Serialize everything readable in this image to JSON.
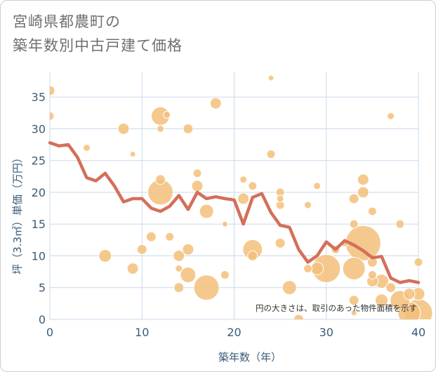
{
  "title": [
    "宮崎県都農町の",
    "築年数別中古戸建て価格"
  ],
  "chart_data": {
    "type": "scatter",
    "xlabel": "築年数（年）",
    "ylabel": "坪（3.3㎡）単価（万円）",
    "xlim": [
      0,
      40
    ],
    "ylim": [
      0,
      39
    ],
    "xticks": [
      0,
      10,
      20,
      30,
      40
    ],
    "yticks": [
      0,
      5,
      10,
      15,
      20,
      25,
      30,
      35
    ],
    "grid": true,
    "note": "円の大きさは、取引のあった物件面積を示す",
    "colors": {
      "bubble": "#f3c07a",
      "bubble_edge": "#ffffff",
      "line": "#d46f5a",
      "axis_text": "#3b5c78",
      "grid": "#c9d9ea"
    },
    "bubbles": [
      {
        "x": 0,
        "y": 36,
        "r": 7
      },
      {
        "x": 0,
        "y": 32,
        "r": 6
      },
      {
        "x": 4,
        "y": 27,
        "r": 5
      },
      {
        "x": 6,
        "y": 10,
        "r": 9
      },
      {
        "x": 8,
        "y": 30,
        "r": 8
      },
      {
        "x": 9,
        "y": 26,
        "r": 4
      },
      {
        "x": 9,
        "y": 8,
        "r": 8
      },
      {
        "x": 10,
        "y": 11,
        "r": 7
      },
      {
        "x": 11,
        "y": 13,
        "r": 7
      },
      {
        "x": 12,
        "y": 32,
        "r": 13
      },
      {
        "x": 12,
        "y": 30,
        "r": 5
      },
      {
        "x": 12,
        "y": 22,
        "r": 7
      },
      {
        "x": 12,
        "y": 20,
        "r": 18
      },
      {
        "x": 12.7,
        "y": 32.2,
        "r": 5
      },
      {
        "x": 13,
        "y": 13,
        "r": 6
      },
      {
        "x": 14,
        "y": 10,
        "r": 8
      },
      {
        "x": 14,
        "y": 5,
        "r": 7
      },
      {
        "x": 14,
        "y": 8,
        "r": 5
      },
      {
        "x": 15,
        "y": 30,
        "r": 7
      },
      {
        "x": 15,
        "y": 11,
        "r": 8
      },
      {
        "x": 15,
        "y": 7,
        "r": 11
      },
      {
        "x": 16,
        "y": 23,
        "r": 6
      },
      {
        "x": 16,
        "y": 21,
        "r": 8
      },
      {
        "x": 17,
        "y": 17,
        "r": 10
      },
      {
        "x": 17,
        "y": 5,
        "r": 18
      },
      {
        "x": 18,
        "y": 34,
        "r": 8
      },
      {
        "x": 19,
        "y": 15,
        "r": 4
      },
      {
        "x": 19,
        "y": 7,
        "r": 6
      },
      {
        "x": 21,
        "y": 22,
        "r": 5
      },
      {
        "x": 21,
        "y": 19,
        "r": 8
      },
      {
        "x": 22,
        "y": 21,
        "r": 6
      },
      {
        "x": 22,
        "y": 11,
        "r": 14
      },
      {
        "x": 22,
        "y": 10,
        "r": 7
      },
      {
        "x": 24,
        "y": 38,
        "r": 4
      },
      {
        "x": 24,
        "y": 26,
        "r": 6
      },
      {
        "x": 25,
        "y": 20,
        "r": 6
      },
      {
        "x": 25,
        "y": 19,
        "r": 5
      },
      {
        "x": 25,
        "y": 18,
        "r": 6
      },
      {
        "x": 25,
        "y": 12,
        "r": 7
      },
      {
        "x": 26,
        "y": 5,
        "r": 10
      },
      {
        "x": 27,
        "y": 0,
        "r": 7
      },
      {
        "x": 28,
        "y": 18,
        "r": 5
      },
      {
        "x": 28,
        "y": 8,
        "r": 6
      },
      {
        "x": 29,
        "y": 21,
        "r": 5
      },
      {
        "x": 29,
        "y": 8,
        "r": 9
      },
      {
        "x": 30,
        "y": 8,
        "r": 20
      },
      {
        "x": 31,
        "y": 11,
        "r": 6
      },
      {
        "x": 32,
        "y": 12,
        "r": 5
      },
      {
        "x": 33,
        "y": 19,
        "r": 7
      },
      {
        "x": 33,
        "y": 15,
        "r": 6
      },
      {
        "x": 33,
        "y": 8,
        "r": 16
      },
      {
        "x": 33,
        "y": 3,
        "r": 7
      },
      {
        "x": 33,
        "y": 1,
        "r": 4
      },
      {
        "x": 34,
        "y": 22,
        "r": 8
      },
      {
        "x": 34,
        "y": 20,
        "r": 8
      },
      {
        "x": 34,
        "y": 12,
        "r": 25
      },
      {
        "x": 35,
        "y": 17,
        "r": 6
      },
      {
        "x": 35,
        "y": 9,
        "r": 7
      },
      {
        "x": 35,
        "y": 7,
        "r": 6
      },
      {
        "x": 35,
        "y": 6,
        "r": 8
      },
      {
        "x": 36,
        "y": 6,
        "r": 10
      },
      {
        "x": 36,
        "y": 3,
        "r": 9
      },
      {
        "x": 37,
        "y": 32,
        "r": 5
      },
      {
        "x": 37,
        "y": 5,
        "r": 7
      },
      {
        "x": 38,
        "y": 15,
        "r": 6
      },
      {
        "x": 38,
        "y": 3,
        "r": 14
      },
      {
        "x": 39,
        "y": 4,
        "r": 8
      },
      {
        "x": 39,
        "y": 1,
        "r": 16
      },
      {
        "x": 40,
        "y": 9,
        "r": 6
      },
      {
        "x": 40,
        "y": 4,
        "r": 9
      },
      {
        "x": 40,
        "y": 1,
        "r": 20
      }
    ],
    "series": [
      {
        "type": "line",
        "values": [
          [
            0,
            27.8
          ],
          [
            1,
            27.3
          ],
          [
            2,
            27.5
          ],
          [
            3,
            25.5
          ],
          [
            4,
            22.3
          ],
          [
            5,
            21.8
          ],
          [
            6,
            23.0
          ],
          [
            7,
            21.0
          ],
          [
            8,
            18.5
          ],
          [
            9,
            19.0
          ],
          [
            10,
            19.0
          ],
          [
            11,
            17.5
          ],
          [
            12,
            17.0
          ],
          [
            13,
            17.8
          ],
          [
            14,
            19.5
          ],
          [
            15,
            17.3
          ],
          [
            16,
            20.0
          ],
          [
            17,
            19.0
          ],
          [
            18,
            19.3
          ],
          [
            19,
            19.0
          ],
          [
            20,
            18.8
          ],
          [
            21,
            15.0
          ],
          [
            22,
            19.2
          ],
          [
            23,
            19.8
          ],
          [
            24,
            16.8
          ],
          [
            25,
            14.8
          ],
          [
            26,
            14.5
          ],
          [
            27,
            11.0
          ],
          [
            28,
            9.0
          ],
          [
            29,
            10.0
          ],
          [
            30,
            12.2
          ],
          [
            31,
            11.0
          ],
          [
            32,
            12.4
          ],
          [
            33,
            11.7
          ],
          [
            34,
            10.8
          ],
          [
            35,
            9.7
          ],
          [
            36,
            9.9
          ],
          [
            37,
            6.5
          ],
          [
            38,
            5.8
          ],
          [
            39,
            6.1
          ],
          [
            40,
            5.8
          ]
        ]
      }
    ]
  }
}
